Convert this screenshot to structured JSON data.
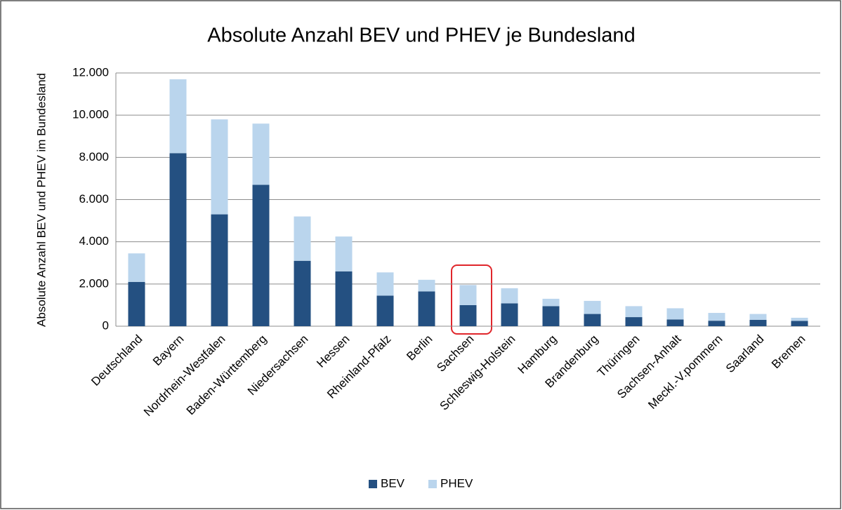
{
  "chart_data": {
    "type": "stacked_bar",
    "title": "Absolute Anzahl BEV und PHEV je Bundesland",
    "y_label": "Absolute Anzahl BEV und PHEV im Bundesland",
    "categories": [
      "Deutschland",
      "Bayern",
      "Nordrhein-Westfalen",
      "Baden-Württemberg",
      "Niedersachsen",
      "Hessen",
      "Rheinland-Pfalz",
      "Berlin",
      "Sachsen",
      "Schleswig-Holstein",
      "Hamburg",
      "Brandenburg",
      "Thüringen",
      "Sachsen-Anhalt",
      "Meckl.-V.pommern",
      "Saarland",
      "Bremen"
    ],
    "series": [
      {
        "name": "BEV",
        "color": "#245081",
        "values": [
          2100,
          8200,
          5300,
          6700,
          3100,
          2600,
          1450,
          1650,
          1000,
          1080,
          950,
          580,
          430,
          320,
          260,
          300,
          250
        ]
      },
      {
        "name": "PHEV",
        "color": "#bad5ed",
        "values": [
          1350,
          3500,
          4500,
          2900,
          2100,
          1650,
          1100,
          550,
          950,
          720,
          350,
          620,
          520,
          530,
          370,
          280,
          150
        ]
      }
    ],
    "ylim": [
      0,
      12000
    ],
    "yticks": [
      0,
      {
        "value": 2000,
        "label": "2.000"
      },
      {
        "value": 4000,
        "label": "4.000"
      },
      {
        "value": 6000,
        "label": "6.000"
      },
      {
        "value": 8000,
        "label": "8.000"
      },
      {
        "value": 10000,
        "label": "10.000"
      },
      {
        "value": 12000,
        "label": "12.000"
      }
    ],
    "grid": true,
    "legend": "bottom"
  }
}
